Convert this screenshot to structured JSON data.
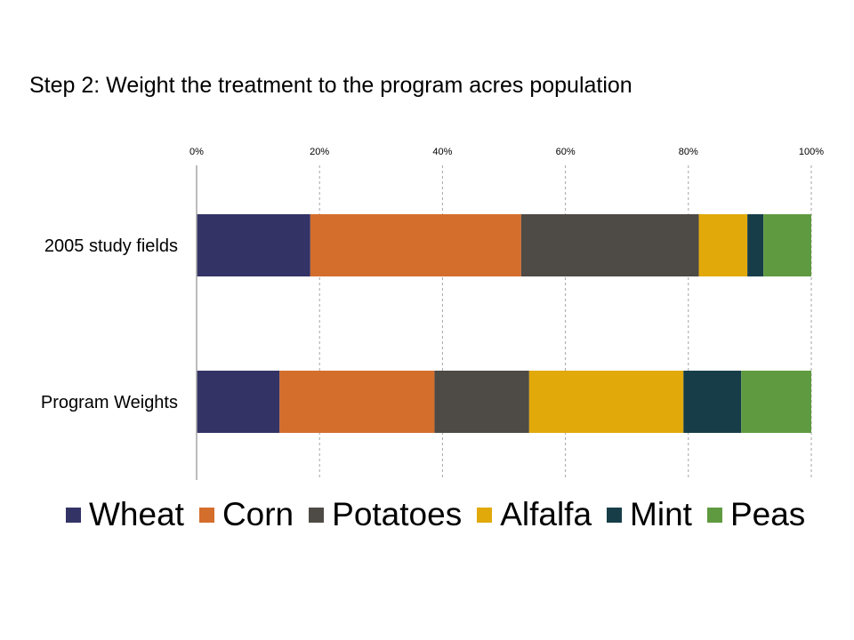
{
  "slide": {
    "title": "Step 2: Weight the treatment to the program acres population"
  },
  "chart_data": {
    "type": "bar",
    "orientation": "horizontal",
    "stacked": "percent",
    "title": "",
    "xlabel": "",
    "ylabel": "",
    "xlim": [
      0,
      100
    ],
    "x_ticks": [
      "0%",
      "20%",
      "40%",
      "60%",
      "80%",
      "100%"
    ],
    "x_axis_position": "top",
    "grid": "vertical-dashed",
    "legend_position": "bottom",
    "categories": [
      "2005 study fields",
      "Program Weights"
    ],
    "series": [
      {
        "name": "Wheat",
        "color": "#333366",
        "values": [
          18.5,
          13.5
        ]
      },
      {
        "name": "Corn",
        "color": "#d46e2c",
        "values": [
          34.3,
          25.2
        ]
      },
      {
        "name": "Potatoes",
        "color": "#4e4a45",
        "values": [
          28.9,
          15.4
        ]
      },
      {
        "name": "Alfalfa",
        "color": "#e1a909",
        "values": [
          7.9,
          25.1
        ]
      },
      {
        "name": "Mint",
        "color": "#173e48",
        "values": [
          2.6,
          9.4
        ]
      },
      {
        "name": "Peas",
        "color": "#5f9a40",
        "values": [
          7.8,
          11.4
        ]
      }
    ]
  }
}
